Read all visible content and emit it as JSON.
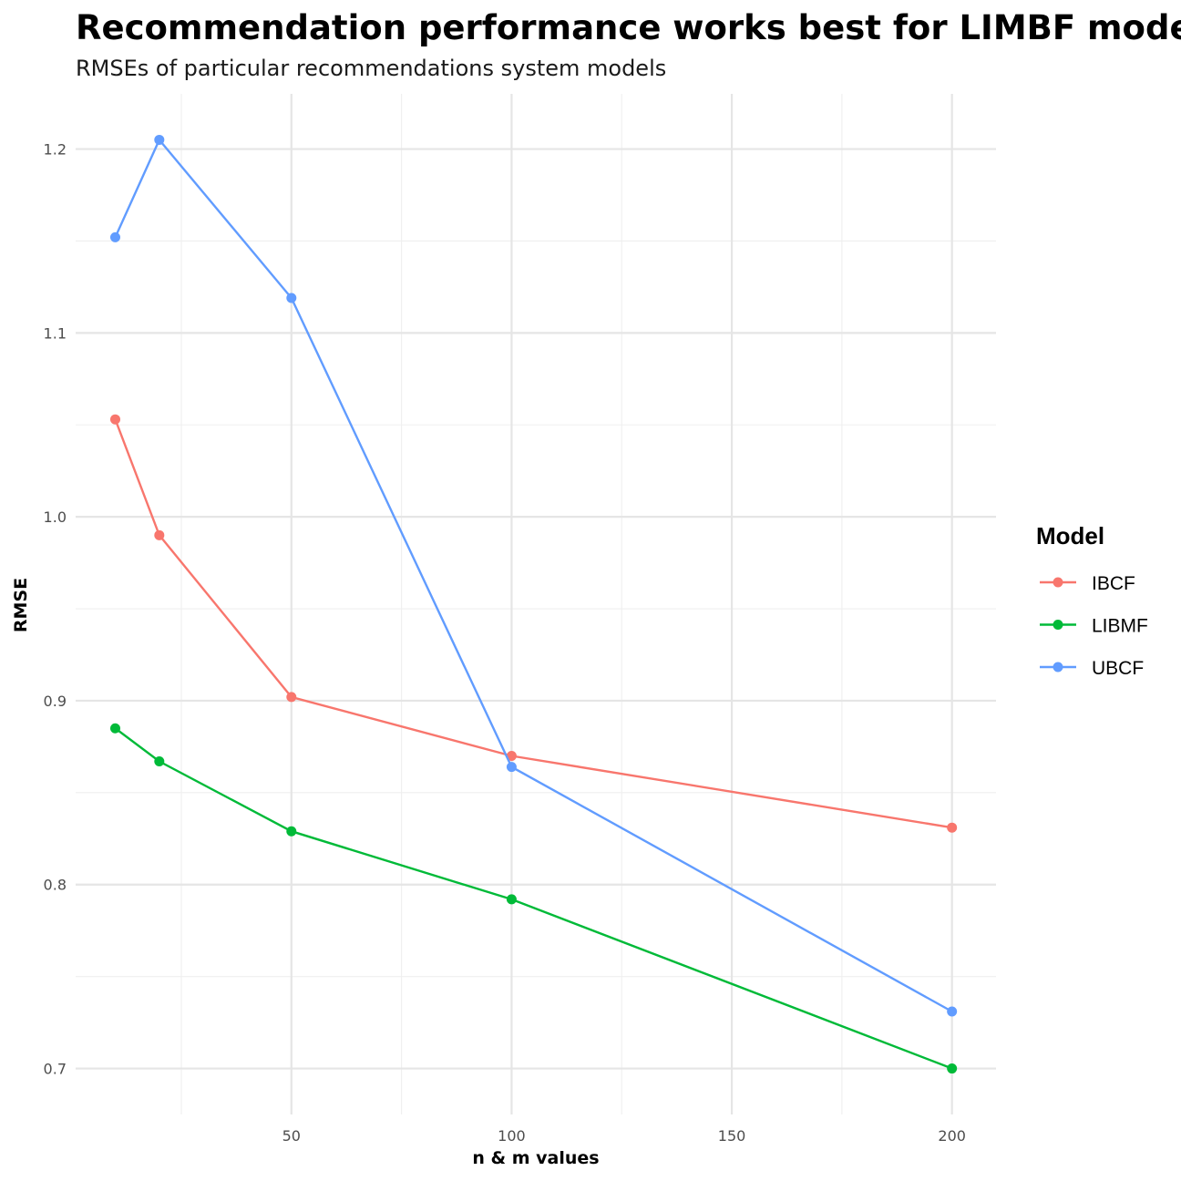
{
  "chart_data": {
    "type": "line",
    "title": "Recommendation performance works best for LIMBF models",
    "subtitle": "RMSEs of particular recommendations system models",
    "xlabel": "n & m values",
    "ylabel": "RMSE",
    "xlim": [
      1,
      210
    ],
    "ylim": [
      0.675,
      1.23
    ],
    "x_ticks": [
      50,
      100,
      150,
      200
    ],
    "y_ticks": [
      0.7,
      0.8,
      0.9,
      1.0,
      1.1,
      1.2
    ],
    "x_tick_labels": [
      "50",
      "100",
      "150",
      "200"
    ],
    "y_tick_labels": [
      "0.7",
      "0.8",
      "0.9",
      "1.0",
      "1.1",
      "1.2"
    ],
    "grid": true,
    "legend_title": "Model",
    "legend_position": "right",
    "x": [
      10,
      20,
      50,
      100,
      200
    ],
    "series": [
      {
        "name": "IBCF",
        "color": "#F8766D",
        "values": [
          1.053,
          0.99,
          0.902,
          0.87,
          0.831
        ]
      },
      {
        "name": "LIBMF",
        "color": "#00BA38",
        "values": [
          0.885,
          0.867,
          0.829,
          0.792,
          0.7
        ]
      },
      {
        "name": "UBCF",
        "color": "#619CFF",
        "values": [
          1.152,
          1.205,
          1.119,
          0.864,
          0.731
        ]
      }
    ]
  }
}
